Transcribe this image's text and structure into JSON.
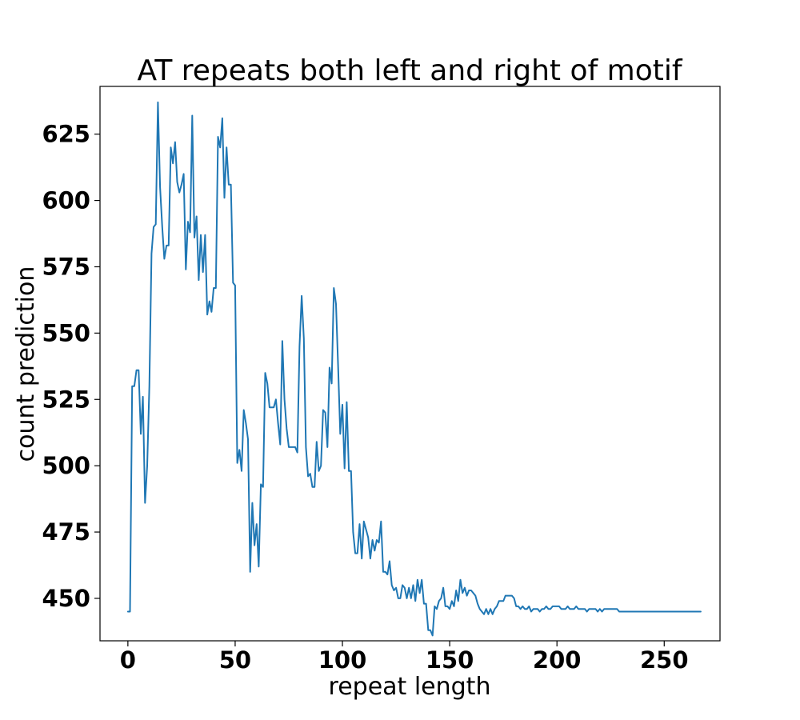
{
  "chart_data": {
    "type": "line",
    "title": "AT repeats both left and right of motif",
    "xlabel": "repeat length",
    "ylabel": "count prediction",
    "xlim": [
      -13,
      276
    ],
    "ylim": [
      434,
      643
    ],
    "xticks": [
      0,
      50,
      100,
      150,
      200,
      250
    ],
    "yticks": [
      450,
      475,
      500,
      525,
      550,
      575,
      600,
      625
    ],
    "grid": false,
    "series": [
      {
        "color": "#1f77b4",
        "points": [
          [
            0,
            445
          ],
          [
            1,
            445
          ],
          [
            2,
            530
          ],
          [
            3,
            530
          ],
          [
            4,
            536
          ],
          [
            5,
            536
          ],
          [
            6,
            512
          ],
          [
            7,
            526
          ],
          [
            8,
            486
          ],
          [
            9,
            500
          ],
          [
            10,
            530
          ],
          [
            11,
            580
          ],
          [
            12,
            590
          ],
          [
            13,
            591
          ],
          [
            14,
            637
          ],
          [
            15,
            605
          ],
          [
            16,
            590
          ],
          [
            17,
            578
          ],
          [
            18,
            583
          ],
          [
            19,
            583
          ],
          [
            20,
            620
          ],
          [
            21,
            614
          ],
          [
            22,
            622
          ],
          [
            23,
            607
          ],
          [
            24,
            603
          ],
          [
            25,
            606
          ],
          [
            26,
            610
          ],
          [
            27,
            574
          ],
          [
            28,
            592
          ],
          [
            29,
            588
          ],
          [
            30,
            632
          ],
          [
            31,
            586
          ],
          [
            32,
            594
          ],
          [
            33,
            570
          ],
          [
            34,
            587
          ],
          [
            35,
            573
          ],
          [
            36,
            587
          ],
          [
            37,
            557
          ],
          [
            38,
            562
          ],
          [
            39,
            558
          ],
          [
            40,
            567
          ],
          [
            41,
            567
          ],
          [
            42,
            624
          ],
          [
            43,
            620
          ],
          [
            44,
            631
          ],
          [
            45,
            601
          ],
          [
            46,
            620
          ],
          [
            47,
            606
          ],
          [
            48,
            606
          ],
          [
            49,
            569
          ],
          [
            50,
            568
          ],
          [
            51,
            501
          ],
          [
            52,
            506
          ],
          [
            53,
            498
          ],
          [
            54,
            521
          ],
          [
            55,
            516
          ],
          [
            56,
            510
          ],
          [
            57,
            460
          ],
          [
            58,
            486
          ],
          [
            59,
            470
          ],
          [
            60,
            478
          ],
          [
            61,
            462
          ],
          [
            62,
            493
          ],
          [
            63,
            492
          ],
          [
            64,
            535
          ],
          [
            65,
            531
          ],
          [
            66,
            522
          ],
          [
            67,
            522
          ],
          [
            68,
            522
          ],
          [
            69,
            525
          ],
          [
            70,
            516
          ],
          [
            71,
            508
          ],
          [
            72,
            547
          ],
          [
            73,
            525
          ],
          [
            74,
            514
          ],
          [
            75,
            507
          ],
          [
            76,
            507
          ],
          [
            77,
            507
          ],
          [
            78,
            507
          ],
          [
            79,
            505
          ],
          [
            80,
            545
          ],
          [
            81,
            564
          ],
          [
            82,
            548
          ],
          [
            83,
            507
          ],
          [
            84,
            496
          ],
          [
            85,
            497
          ],
          [
            86,
            492
          ],
          [
            87,
            492
          ],
          [
            88,
            509
          ],
          [
            89,
            498
          ],
          [
            90,
            500
          ],
          [
            91,
            521
          ],
          [
            92,
            520
          ],
          [
            93,
            507
          ],
          [
            94,
            537
          ],
          [
            95,
            531
          ],
          [
            96,
            567
          ],
          [
            97,
            561
          ],
          [
            98,
            537
          ],
          [
            99,
            512
          ],
          [
            100,
            523
          ],
          [
            101,
            499
          ],
          [
            102,
            524
          ],
          [
            103,
            498
          ],
          [
            104,
            498
          ],
          [
            105,
            475
          ],
          [
            106,
            467
          ],
          [
            107,
            467
          ],
          [
            108,
            478
          ],
          [
            109,
            465
          ],
          [
            110,
            479
          ],
          [
            111,
            476
          ],
          [
            112,
            473
          ],
          [
            113,
            465
          ],
          [
            114,
            472
          ],
          [
            115,
            468
          ],
          [
            116,
            472
          ],
          [
            117,
            471
          ],
          [
            118,
            479
          ],
          [
            119,
            460
          ],
          [
            120,
            460
          ],
          [
            121,
            459
          ],
          [
            122,
            464
          ],
          [
            123,
            455
          ],
          [
            124,
            453
          ],
          [
            125,
            454
          ],
          [
            126,
            450
          ],
          [
            127,
            450
          ],
          [
            128,
            455
          ],
          [
            129,
            454
          ],
          [
            130,
            450
          ],
          [
            131,
            454
          ],
          [
            132,
            450
          ],
          [
            133,
            455
          ],
          [
            134,
            449
          ],
          [
            135,
            457
          ],
          [
            136,
            452
          ],
          [
            137,
            457
          ],
          [
            138,
            448
          ],
          [
            139,
            448
          ],
          [
            140,
            438
          ],
          [
            141,
            438
          ],
          [
            142,
            436
          ],
          [
            143,
            447
          ],
          [
            144,
            446
          ],
          [
            145,
            449
          ],
          [
            146,
            450
          ],
          [
            147,
            454
          ],
          [
            148,
            447
          ],
          [
            149,
            447
          ],
          [
            150,
            446
          ],
          [
            151,
            449
          ],
          [
            152,
            447
          ],
          [
            153,
            453
          ],
          [
            154,
            449
          ],
          [
            155,
            457
          ],
          [
            156,
            452
          ],
          [
            157,
            454
          ],
          [
            158,
            451
          ],
          [
            159,
            453
          ],
          [
            160,
            453
          ],
          [
            161,
            452
          ],
          [
            162,
            451
          ],
          [
            163,
            448
          ],
          [
            164,
            446
          ],
          [
            165,
            445
          ],
          [
            166,
            444
          ],
          [
            167,
            446
          ],
          [
            168,
            444
          ],
          [
            169,
            446
          ],
          [
            170,
            444
          ],
          [
            171,
            446
          ],
          [
            172,
            447
          ],
          [
            173,
            449
          ],
          [
            174,
            449
          ],
          [
            175,
            449
          ],
          [
            176,
            451
          ],
          [
            177,
            451
          ],
          [
            178,
            451
          ],
          [
            179,
            451
          ],
          [
            180,
            450
          ],
          [
            181,
            447
          ],
          [
            182,
            447
          ],
          [
            183,
            446
          ],
          [
            184,
            447
          ],
          [
            185,
            446
          ],
          [
            186,
            446
          ],
          [
            187,
            447
          ],
          [
            188,
            445
          ],
          [
            189,
            446
          ],
          [
            190,
            446
          ],
          [
            191,
            446
          ],
          [
            192,
            445
          ],
          [
            193,
            446
          ],
          [
            194,
            446
          ],
          [
            195,
            447
          ],
          [
            196,
            446
          ],
          [
            197,
            446
          ],
          [
            198,
            447
          ],
          [
            199,
            447
          ],
          [
            200,
            447
          ],
          [
            201,
            447
          ],
          [
            202,
            446
          ],
          [
            203,
            446
          ],
          [
            204,
            446
          ],
          [
            205,
            447
          ],
          [
            206,
            446
          ],
          [
            207,
            446
          ],
          [
            208,
            446
          ],
          [
            209,
            447
          ],
          [
            210,
            446
          ],
          [
            211,
            446
          ],
          [
            212,
            446
          ],
          [
            213,
            446
          ],
          [
            214,
            445
          ],
          [
            215,
            446
          ],
          [
            216,
            446
          ],
          [
            217,
            446
          ],
          [
            218,
            446
          ],
          [
            219,
            445
          ],
          [
            220,
            446
          ],
          [
            221,
            445
          ],
          [
            222,
            446
          ],
          [
            223,
            446
          ],
          [
            224,
            446
          ],
          [
            225,
            446
          ],
          [
            226,
            446
          ],
          [
            227,
            446
          ],
          [
            228,
            446
          ],
          [
            229,
            445
          ],
          [
            230,
            445
          ],
          [
            231,
            445
          ],
          [
            232,
            445
          ],
          [
            233,
            445
          ],
          [
            234,
            445
          ],
          [
            235,
            445
          ],
          [
            236,
            445
          ],
          [
            237,
            445
          ],
          [
            238,
            445
          ],
          [
            239,
            445
          ],
          [
            240,
            445
          ],
          [
            241,
            445
          ],
          [
            242,
            445
          ],
          [
            243,
            445
          ],
          [
            244,
            445
          ],
          [
            245,
            445
          ],
          [
            246,
            445
          ],
          [
            247,
            445
          ],
          [
            248,
            445
          ],
          [
            249,
            445
          ],
          [
            250,
            445
          ],
          [
            251,
            445
          ],
          [
            252,
            445
          ],
          [
            253,
            445
          ],
          [
            254,
            445
          ],
          [
            255,
            445
          ],
          [
            256,
            445
          ],
          [
            257,
            445
          ],
          [
            258,
            445
          ],
          [
            259,
            445
          ],
          [
            260,
            445
          ],
          [
            261,
            445
          ],
          [
            262,
            445
          ],
          [
            263,
            445
          ],
          [
            264,
            445
          ],
          [
            265,
            445
          ],
          [
            266,
            445
          ],
          [
            267,
            445
          ]
        ]
      }
    ]
  }
}
